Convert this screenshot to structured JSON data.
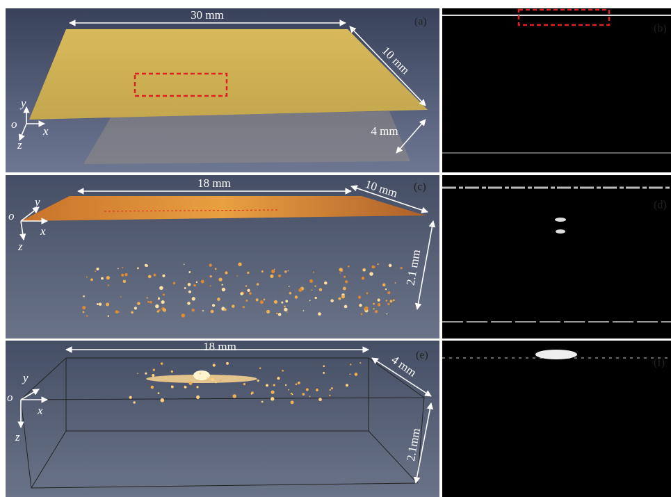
{
  "panels": [
    {
      "label": "(a)",
      "dimensions": [
        "30 mm",
        "10 mm",
        "4 mm"
      ],
      "axes": [
        "y",
        "o",
        "x",
        "z"
      ]
    },
    {
      "label": "(b)"
    },
    {
      "label": "(c)",
      "dimensions": [
        "18 mm",
        "10 mm",
        "2.1 mm"
      ],
      "axes": [
        "y",
        "o",
        "x",
        "z"
      ]
    },
    {
      "label": "(d)"
    },
    {
      "label": "(e)",
      "dimensions": [
        "18 mm",
        "4 mm",
        "2.1mm"
      ],
      "axes": [
        "y",
        "o",
        "x",
        "z"
      ]
    },
    {
      "label": "(f)"
    }
  ]
}
